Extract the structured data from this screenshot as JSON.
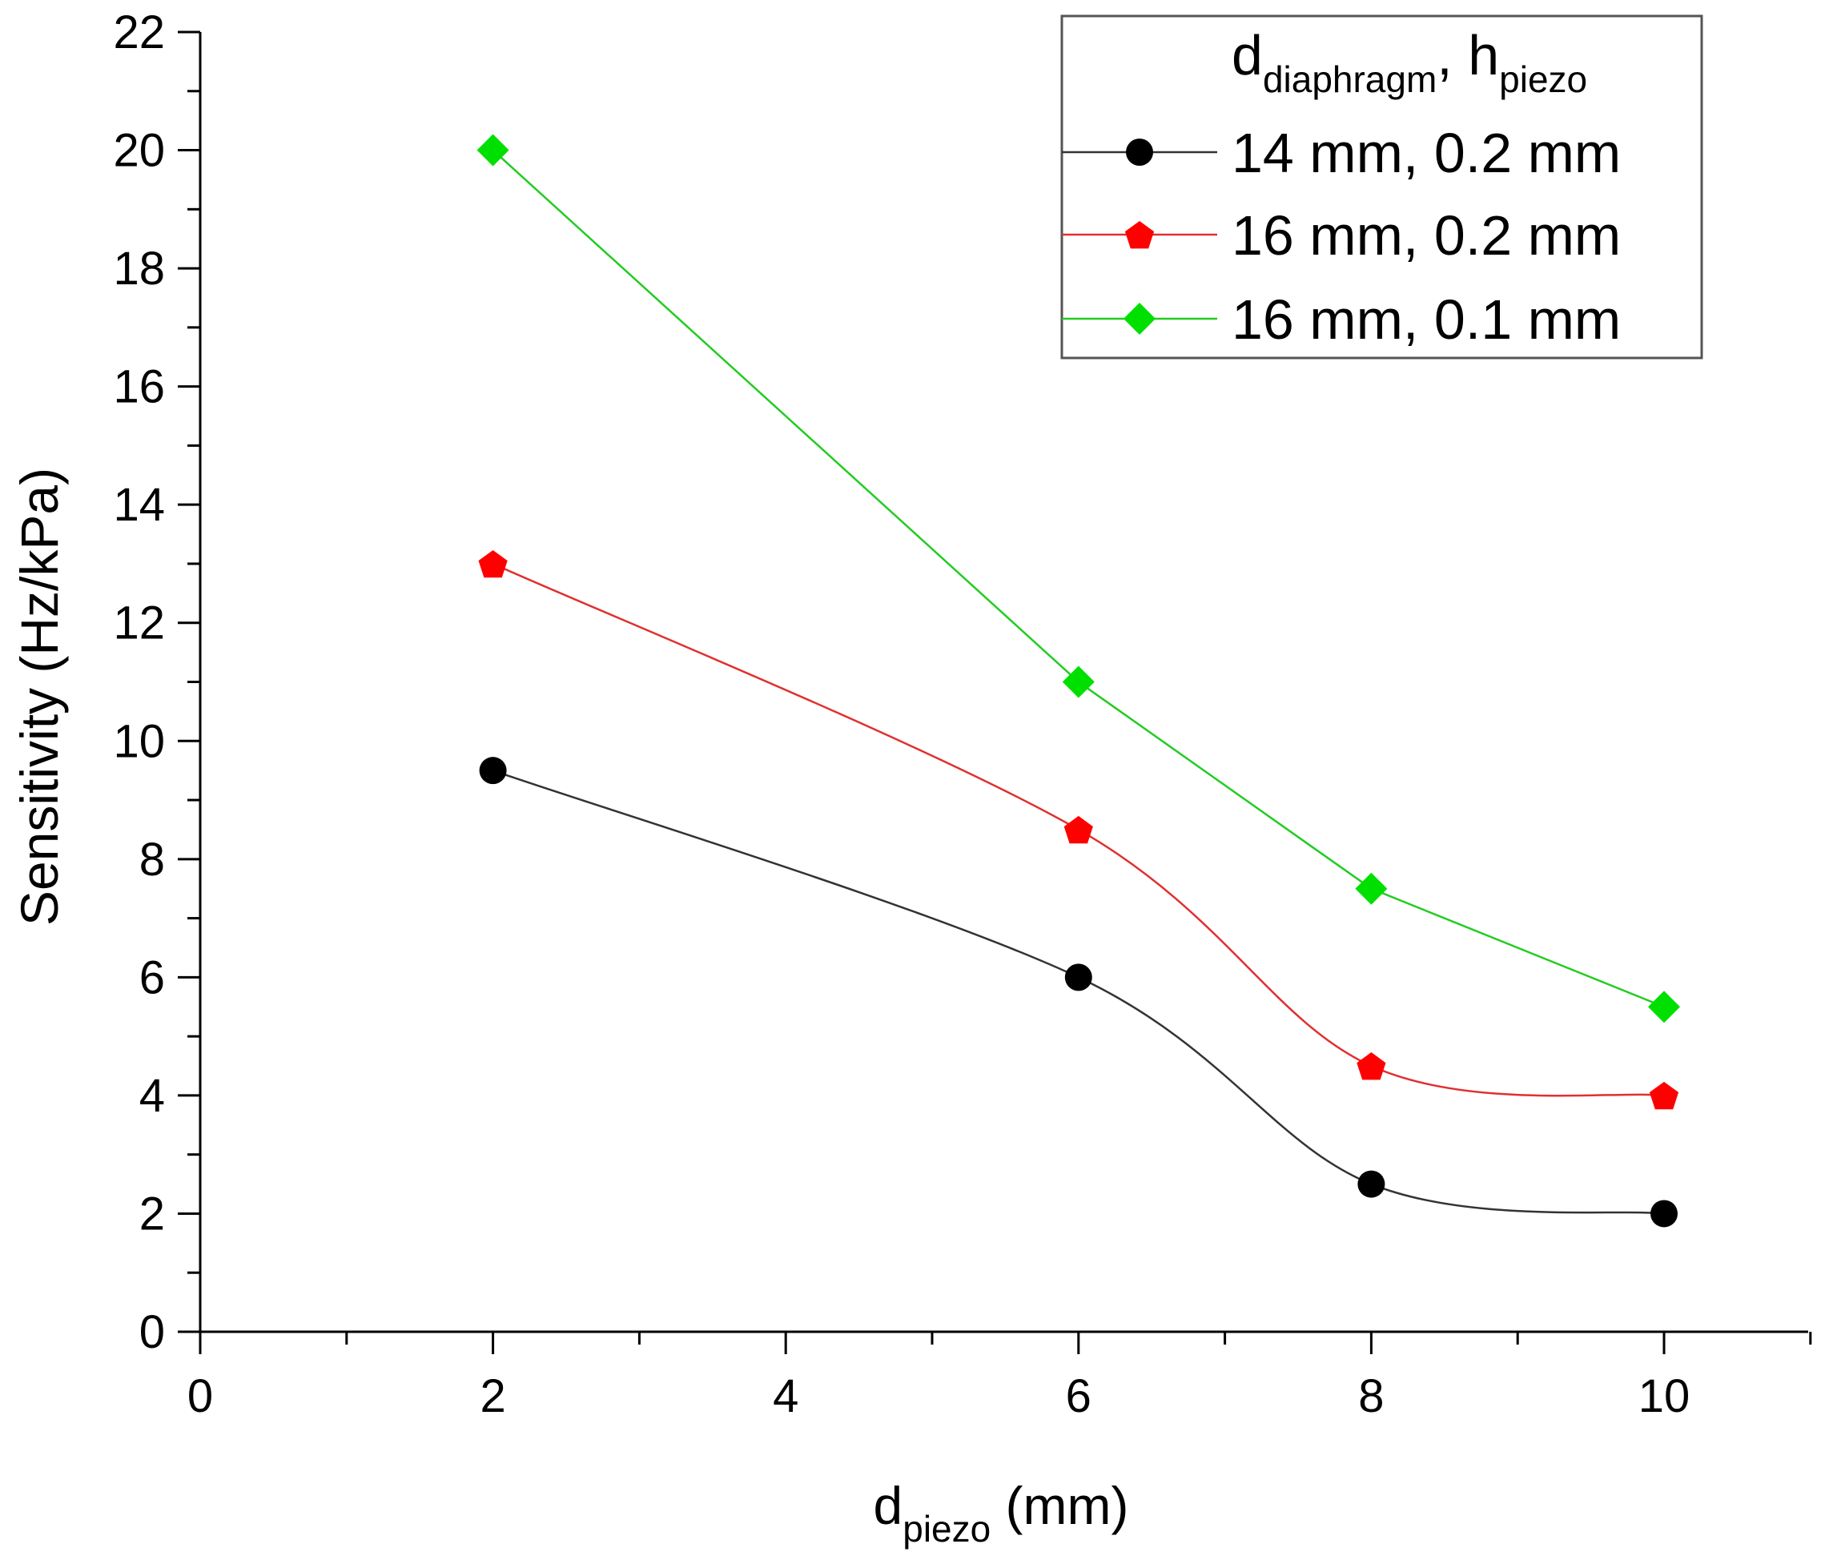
{
  "chart_data": {
    "type": "line",
    "title": "",
    "xlabel": {
      "main": "d",
      "sub": "piezo",
      "unit": " (mm)"
    },
    "ylabel": "Sensitivity (Hz/kPa)",
    "xlim": [
      0,
      11
    ],
    "ylim": [
      0,
      22
    ],
    "x_ticks": [
      0,
      2,
      4,
      6,
      8,
      10
    ],
    "y_ticks": [
      0,
      2,
      4,
      6,
      8,
      10,
      12,
      14,
      16,
      18,
      20,
      22
    ],
    "grid": false,
    "legend": {
      "placement": "top-right",
      "title": {
        "d": "d",
        "d_sub": "diaphragm",
        "sep": ", ",
        "h": "h",
        "h_sub": "piezo"
      }
    },
    "series": [
      {
        "name": "14 mm, 0.2 mm",
        "color": "#000000",
        "line_color": "#333333",
        "marker": "circle",
        "x": [
          2,
          6,
          8,
          10
        ],
        "values": [
          9.5,
          6.0,
          2.5,
          2.0
        ]
      },
      {
        "name": "16 mm, 0.2 mm",
        "color": "#ff0000",
        "line_color": "#e03030",
        "marker": "pentagon",
        "x": [
          2,
          6,
          8,
          10
        ],
        "values": [
          13.0,
          8.5,
          4.5,
          4.0
        ]
      },
      {
        "name": "16 mm, 0.1 mm",
        "color": "#00e000",
        "line_color": "#22cc22",
        "marker": "diamond",
        "x": [
          2,
          6,
          8,
          10
        ],
        "values": [
          20.0,
          11.0,
          7.5,
          5.5
        ]
      }
    ]
  }
}
